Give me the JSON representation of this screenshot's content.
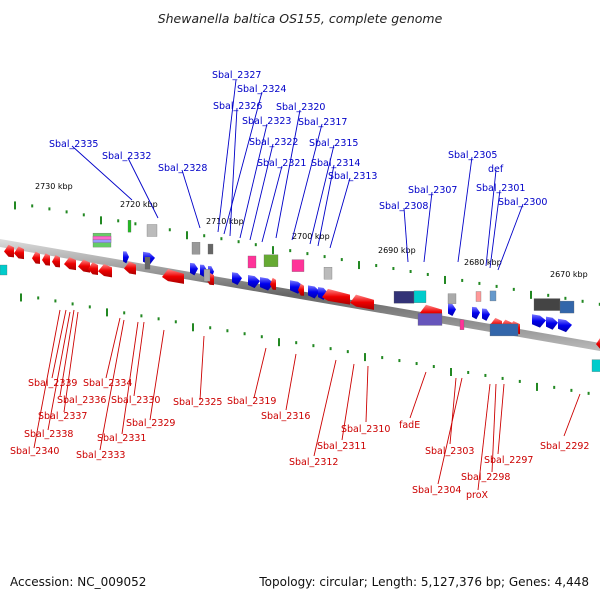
{
  "title": "Shewanella baltica OS155, complete genome",
  "footer": {
    "accession": "Accession: NC_009052",
    "summary": "Topology: circular; Length: 5,127,376 bp; Genes: 4,448"
  },
  "colors": {
    "forward_gene": "#0000ee",
    "reverse_gene": "#ee0000",
    "tick": "#228822",
    "backbone": "#888888"
  },
  "scale_labels": [
    "2730 kbp",
    "2720 kbp",
    "2710 kbp",
    "2700 kbp",
    "2690 kbp",
    "2680 kbp",
    "2670 kbp"
  ],
  "top_labels": [
    "Sbal_2327",
    "Sbal_2324",
    "Sbal_2326",
    "Sbal_2320",
    "Sbal_2323",
    "Sbal_2317",
    "Sbal_2322",
    "Sbal_2315",
    "Sbal_2321",
    "Sbal_2314",
    "Sbal_2313",
    "Sbal_2335",
    "Sbal_2332",
    "Sbal_2328",
    "Sbal_2305",
    "def",
    "Sbal_2307",
    "Sbal_2301",
    "Sbal_2308",
    "Sbal_2300"
  ],
  "bottom_labels": [
    "Sbal_2339",
    "Sbal_2334",
    "Sbal_2336",
    "Sbal_2330",
    "Sbal_2337",
    "Sbal_2338",
    "Sbal_2331",
    "Sbal_2340",
    "Sbal_2333",
    "Sbal_2329",
    "Sbal_2325",
    "Sbal_2319",
    "Sbal_2316",
    "Sbal_2312",
    "Sbal_2311",
    "Sbal_2310",
    "fadE",
    "Sbal_2303",
    "Sbal_2304",
    "Sbal_2297",
    "Sbal_2298",
    "proX",
    "Sbal_2292"
  ]
}
